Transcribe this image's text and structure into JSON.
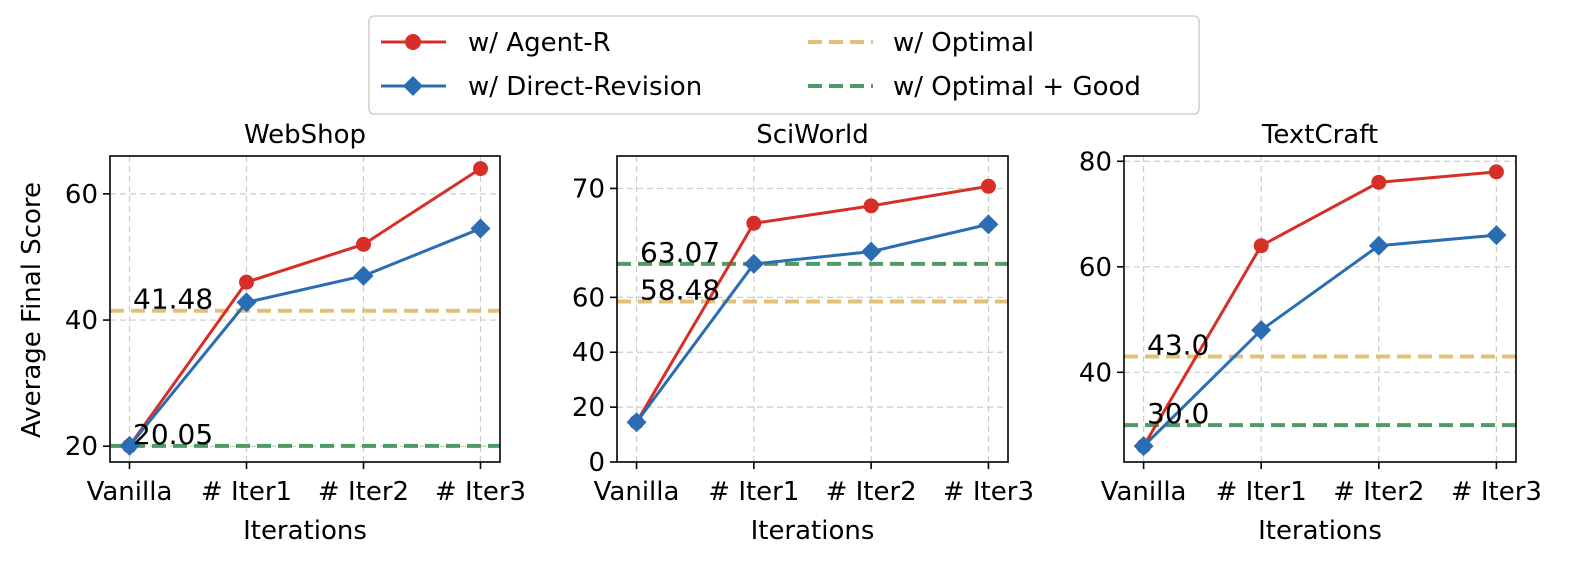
{
  "legend": {
    "items": [
      {
        "label": "w/ Agent-R",
        "color": "#d62f27",
        "marker": "circle",
        "style": "solid"
      },
      {
        "label": "w/ Direct-Revision",
        "color": "#2a6db3",
        "marker": "diamond",
        "style": "solid"
      },
      {
        "label": "w/ Optimal",
        "color": "#e3c07a",
        "marker": "none",
        "style": "dashed"
      },
      {
        "label": "w/ Optimal + Good",
        "color": "#4f9a66",
        "marker": "none",
        "style": "dashed"
      }
    ]
  },
  "chart_data": [
    {
      "type": "line",
      "title": "WebShop",
      "xlabel": "Iterations",
      "ylabel": "Average Final Score",
      "categories": [
        "Vanilla",
        "# Iter1",
        "# Iter2",
        "# Iter3"
      ],
      "ylim": [
        17.5,
        66
      ],
      "yticks": [
        20,
        40,
        60
      ],
      "series": [
        {
          "name": "w/ Agent-R",
          "values": [
            20.05,
            46,
            52,
            64
          ]
        },
        {
          "name": "w/ Direct-Revision",
          "values": [
            20.05,
            42.8,
            47,
            54.5
          ]
        }
      ],
      "reference_lines": [
        {
          "name": "w/ Optimal",
          "value": 41.48,
          "label": "41.48"
        },
        {
          "name": "w/ Optimal + Good",
          "value": 20.05,
          "label": "20.05"
        }
      ]
    },
    {
      "type": "line",
      "title": "SciWorld",
      "xlabel": "Iterations",
      "ylabel": "",
      "categories": [
        "Vanilla",
        "# Iter1",
        "# Iter2",
        "# Iter3"
      ],
      "yscale": "piecewise",
      "y_breakpoints": [
        [
          0,
          0
        ],
        [
          60,
          0.538
        ],
        [
          70,
          0.894
        ],
        [
          73,
          1.0
        ]
      ],
      "ylim": [
        0,
        73
      ],
      "yticks": [
        0,
        20,
        40,
        60,
        70
      ],
      "series": [
        {
          "name": "w/ Agent-R",
          "values": [
            14.5,
            66.8,
            68.4,
            70.2
          ]
        },
        {
          "name": "w/ Direct-Revision",
          "values": [
            14.5,
            63.07,
            64.2,
            66.7
          ]
        }
      ],
      "reference_lines": [
        {
          "name": "w/ Optimal",
          "value": 58.48,
          "label": "58.48"
        },
        {
          "name": "w/ Optimal + Good",
          "value": 63.07,
          "label": "63.07"
        }
      ]
    },
    {
      "type": "line",
      "title": "TextCraft",
      "xlabel": "Iterations",
      "ylabel": "",
      "categories": [
        "Vanilla",
        "# Iter1",
        "# Iter2",
        "# Iter3"
      ],
      "ylim": [
        23,
        81
      ],
      "yticks": [
        40,
        60,
        80
      ],
      "series": [
        {
          "name": "w/ Agent-R",
          "values": [
            26,
            64,
            76,
            78
          ]
        },
        {
          "name": "w/ Direct-Revision",
          "values": [
            26,
            48,
            64,
            66
          ]
        }
      ],
      "reference_lines": [
        {
          "name": "w/ Optimal",
          "value": 43.0,
          "label": "43.0"
        },
        {
          "name": "w/ Optimal + Good",
          "value": 30.0,
          "label": "30.0"
        }
      ]
    }
  ]
}
